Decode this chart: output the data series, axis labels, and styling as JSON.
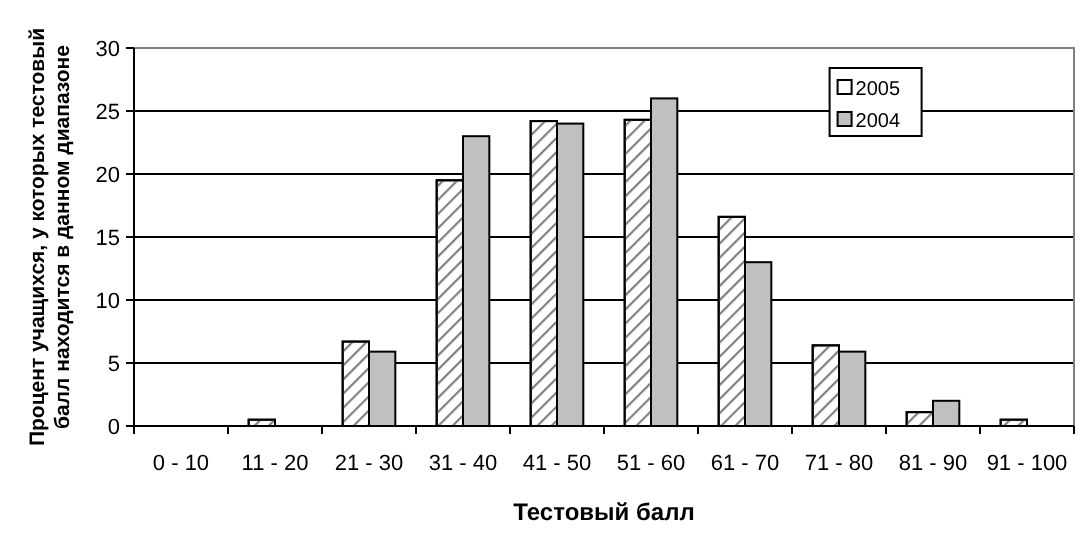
{
  "chart_data": {
    "type": "bar",
    "xlabel": "Тестовый балл",
    "ylabel": "Процент учащихся, у которых тестовый балл находится в данном диапазоне",
    "categories": [
      "0 - 10",
      "11 - 20",
      "21 - 30",
      "31 - 40",
      "41 - 50",
      "51 - 60",
      "61 - 70",
      "71 - 80",
      "81 - 90",
      "91 - 100"
    ],
    "series": [
      {
        "name": "2005",
        "color": "#ffffff",
        "values": [
          0,
          0.5,
          6.7,
          19.5,
          24.2,
          24.3,
          16.6,
          6.4,
          1.1,
          0.5
        ]
      },
      {
        "name": "2004",
        "color": "#c0c0c0",
        "values": [
          0,
          0,
          5.9,
          23,
          24,
          26,
          13,
          5.9,
          2,
          0
        ]
      }
    ],
    "ylim": [
      0,
      30
    ],
    "yticks": [
      0,
      5,
      10,
      15,
      20,
      25,
      30
    ],
    "grid": "y",
    "legend": "top right"
  }
}
